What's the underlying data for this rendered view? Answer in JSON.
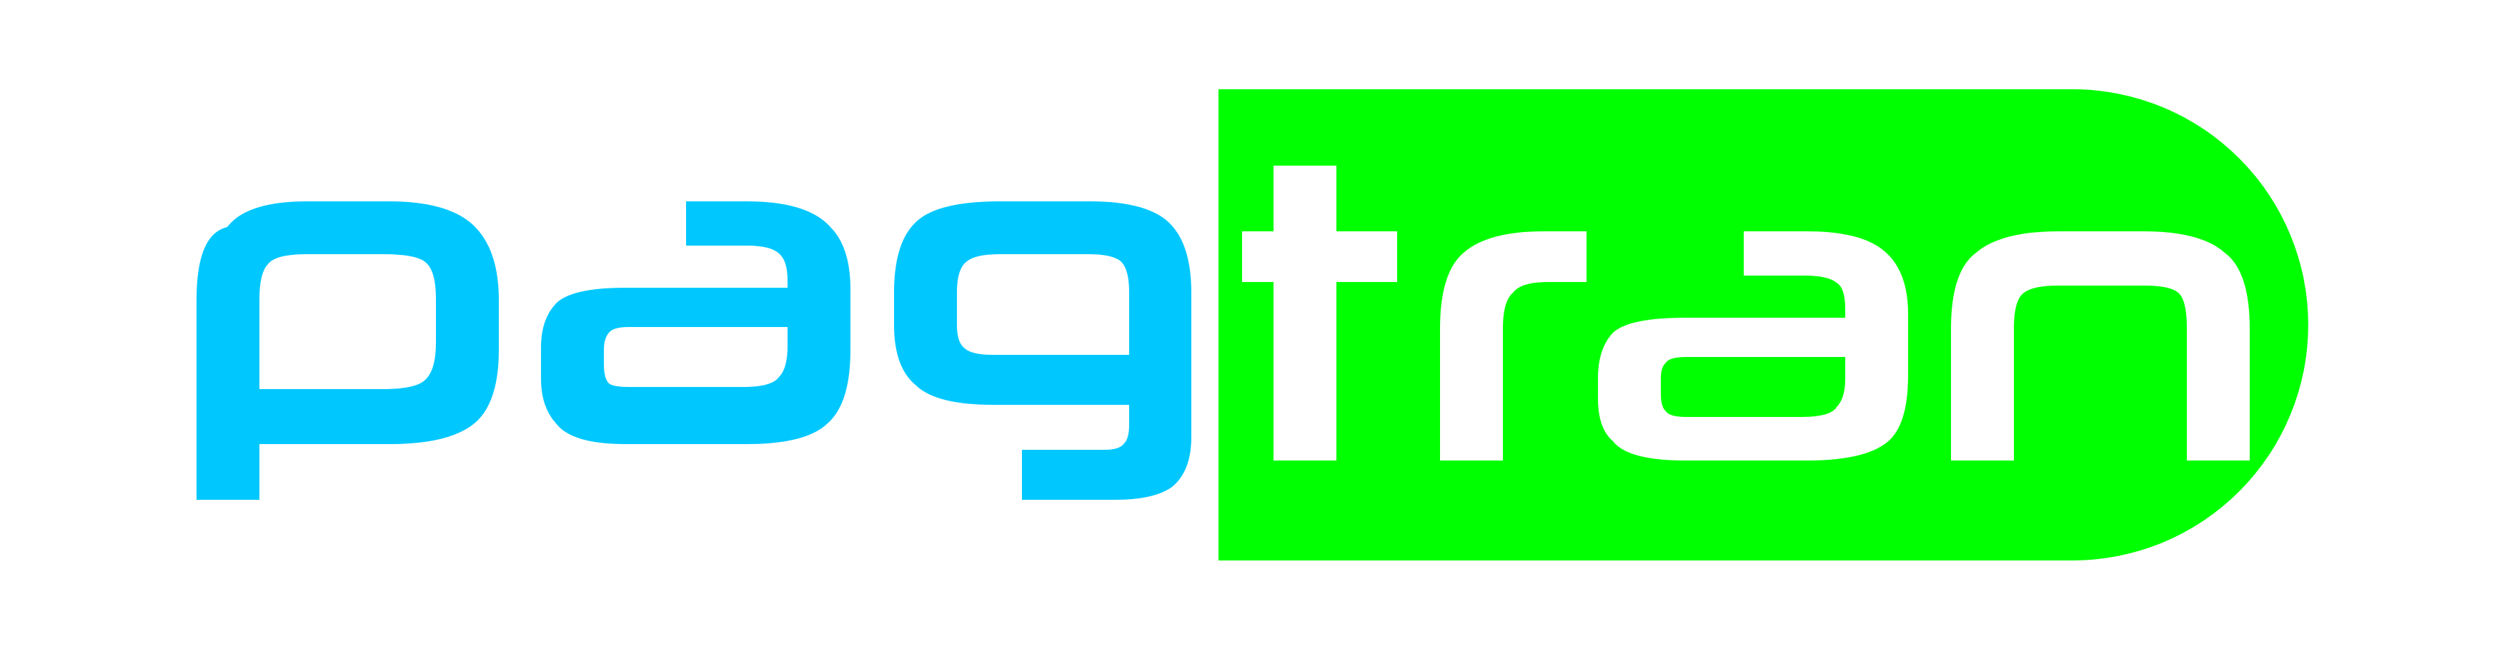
{
  "logo": {
    "wordmark": "pagtran",
    "left_part": "pag",
    "right_part": "tran"
  },
  "colors": {
    "background": "#ffffff",
    "blue": "#00c8ff",
    "green": "#00ff00",
    "white": "#ffffff"
  }
}
